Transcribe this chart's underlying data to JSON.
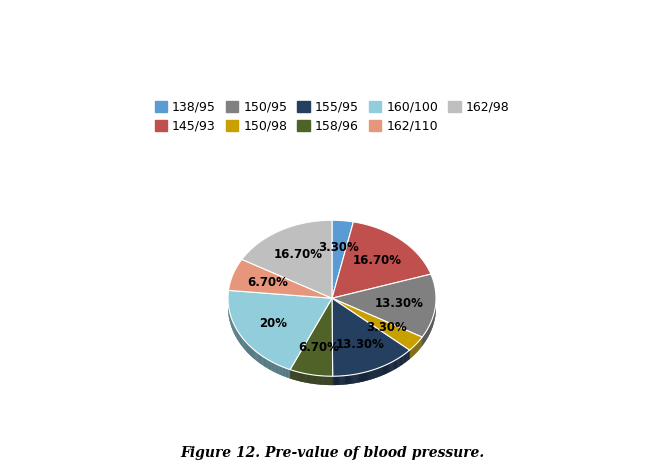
{
  "labels": [
    "138/95",
    "145/93",
    "150/95",
    "150/98",
    "155/95",
    "158/96",
    "160/100",
    "162/110",
    "162/98"
  ],
  "values": [
    3.3,
    16.7,
    13.3,
    3.3,
    13.3,
    6.7,
    20.0,
    6.7,
    16.7
  ],
  "colors": [
    "#5B9BD5",
    "#C0504D",
    "#808080",
    "#C8A000",
    "#243F60",
    "#4F6228",
    "#92CDDC",
    "#E6967A",
    "#BFBFBF"
  ],
  "edge_colors": [
    "#4A8AC4",
    "#A03030",
    "#606060",
    "#A08000",
    "#162830",
    "#3A4A18",
    "#70BCCC",
    "#C07060",
    "#9F9F9F"
  ],
  "title": "Figure 12. Pre-value of blood pressure.",
  "startangle": 90,
  "figure_width": 6.64,
  "figure_height": 4.65,
  "dpi": 100,
  "legend_ncol": 5,
  "pct_labels": [
    "3.30%",
    "16.70%",
    "13.30%",
    "3.30%",
    "13.30%",
    "6.70%",
    "20%",
    "6.70%",
    "16.70%"
  ]
}
